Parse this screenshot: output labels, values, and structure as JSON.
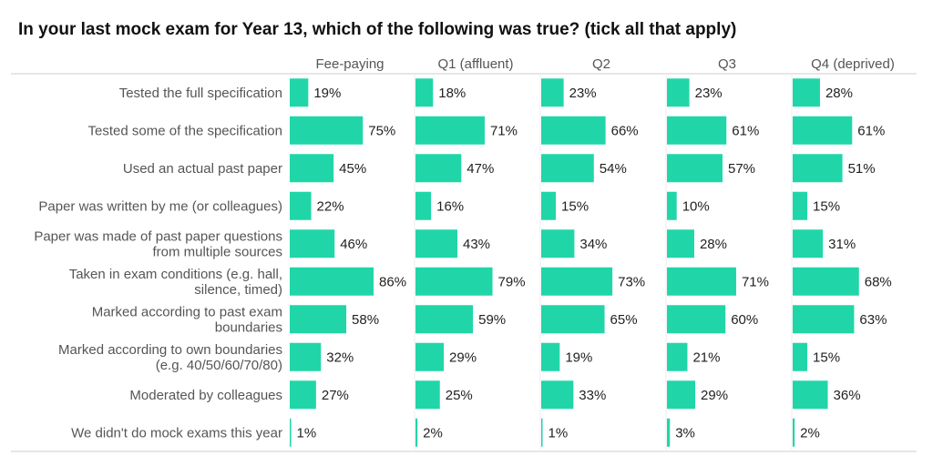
{
  "chart_data": {
    "type": "bar",
    "orientation": "horizontal",
    "layout": "small-multiples",
    "title": "In your last mock exam for Year 13, which of the following was true? (tick all that apply)",
    "value_suffix": "%",
    "xlim": [
      0,
      100
    ],
    "grid": false,
    "bar_color": "#20d6a8",
    "categories": [
      [
        "Tested the full specification"
      ],
      [
        "Tested some of the specification"
      ],
      [
        "Used an actual past paper"
      ],
      [
        "Paper was written by me (or colleagues)"
      ],
      [
        "Paper was made of past paper questions",
        "from multiple sources"
      ],
      [
        "Taken in exam conditions (e.g. hall,",
        "silence, timed)"
      ],
      [
        "Marked according to past exam",
        "boundaries"
      ],
      [
        "Marked according to own boundaries",
        "(e.g. 40/50/60/70/80)"
      ],
      [
        "Moderated by colleagues"
      ],
      [
        "We didn't do mock exams this year"
      ]
    ],
    "series": [
      {
        "name": "Fee-paying",
        "values": [
          19,
          75,
          45,
          22,
          46,
          86,
          58,
          32,
          27,
          1
        ]
      },
      {
        "name": "Q1 (affluent)",
        "values": [
          18,
          71,
          47,
          16,
          43,
          79,
          59,
          29,
          25,
          2
        ]
      },
      {
        "name": "Q2",
        "values": [
          23,
          66,
          54,
          15,
          34,
          73,
          65,
          19,
          33,
          1
        ]
      },
      {
        "name": "Q3",
        "values": [
          23,
          61,
          57,
          10,
          28,
          71,
          60,
          21,
          29,
          3
        ]
      },
      {
        "name": "Q4 (deprived)",
        "values": [
          28,
          61,
          51,
          15,
          31,
          68,
          63,
          15,
          36,
          2
        ]
      }
    ]
  }
}
